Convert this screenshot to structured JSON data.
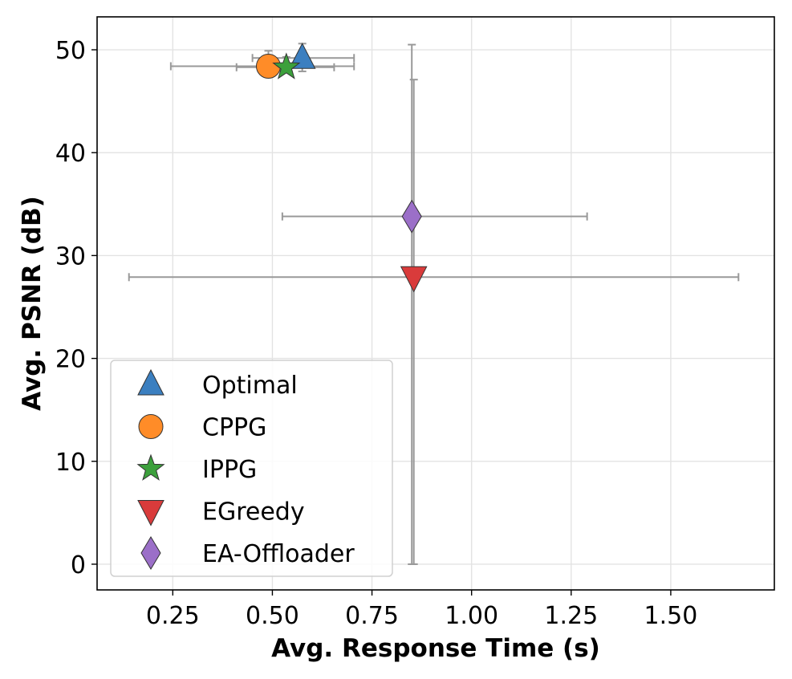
{
  "chart_data": {
    "type": "scatter",
    "title": "",
    "xlabel": "Avg. Response Time (s)",
    "ylabel": "Avg. PSNR (dB)",
    "xlim": [
      0.06,
      1.76
    ],
    "ylim": [
      -2.5,
      53.2
    ],
    "xticks": [
      0.25,
      0.5,
      0.75,
      1.0,
      1.25,
      1.5
    ],
    "xtick_labels": [
      "0.25",
      "0.50",
      "0.75",
      "1.00",
      "1.25",
      "1.50"
    ],
    "yticks": [
      0,
      10,
      20,
      30,
      40,
      50
    ],
    "ytick_labels": [
      "0",
      "10",
      "20",
      "30",
      "40",
      "50"
    ],
    "grid": true,
    "legend_position": "lower-left",
    "errorbar_color": "#999999",
    "series": [
      {
        "name": "Optimal",
        "marker": "triangle-up",
        "color": "#3b7fc0",
        "x": 0.575,
        "y": 49.2,
        "xerr": [
          0.45,
          0.705
        ],
        "yerr": [
          47.9,
          50.6
        ]
      },
      {
        "name": "CPPG",
        "marker": "circle",
        "color": "#ff8c28",
        "x": 0.49,
        "y": 48.4,
        "xerr": [
          0.245,
          0.705
        ],
        "yerr": [
          47.9,
          49.9
        ]
      },
      {
        "name": "IPPG",
        "marker": "star",
        "color": "#3ca03c",
        "x": 0.535,
        "y": 48.3,
        "xerr": [
          0.41,
          0.655
        ],
        "yerr": [
          47.8,
          49.3
        ]
      },
      {
        "name": "EGreedy",
        "marker": "triangle-down",
        "color": "#d93b3b",
        "x": 0.855,
        "y": 27.9,
        "xerr": [
          0.14,
          1.67
        ],
        "yerr": [
          0.0,
          47.1
        ]
      },
      {
        "name": "EA-Offloader",
        "marker": "diamond",
        "color": "#9b6fc8",
        "x": 0.85,
        "y": 33.8,
        "xerr": [
          0.525,
          1.29
        ],
        "yerr": [
          0.0,
          50.5
        ]
      }
    ]
  }
}
